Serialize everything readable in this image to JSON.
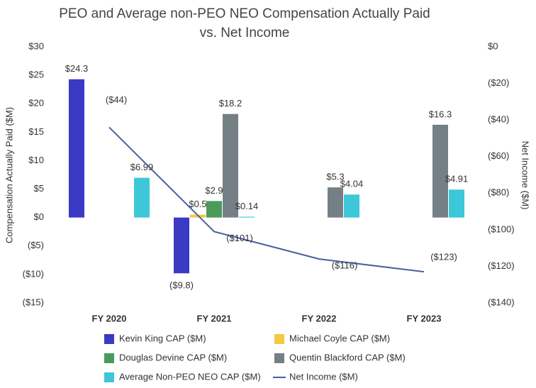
{
  "chart_data": {
    "type": "bar",
    "title": "PEO and Average non-PEO NEO Compensation Actually Paid vs. Net Income",
    "y_label": "Compensation Actually Paid ($M)",
    "y2_label": "Net Income ($M)",
    "categories": [
      "FY 2020",
      "FY 2021",
      "FY 2022",
      "FY 2023"
    ],
    "ylim": [
      -15,
      30
    ],
    "yticks": [
      {
        "value": -15,
        "label": "($15)"
      },
      {
        "value": -10,
        "label": "($10)"
      },
      {
        "value": -5,
        "label": "($5)"
      },
      {
        "value": 0,
        "label": "$0"
      },
      {
        "value": 5,
        "label": "$5"
      },
      {
        "value": 10,
        "label": "$10"
      },
      {
        "value": 15,
        "label": "$15"
      },
      {
        "value": 20,
        "label": "$20"
      },
      {
        "value": 25,
        "label": "$25"
      },
      {
        "value": 30,
        "label": "$30"
      }
    ],
    "y2lim": [
      -140,
      0
    ],
    "y2ticks": [
      {
        "value": -140,
        "label": "($140)"
      },
      {
        "value": -120,
        "label": "($120)"
      },
      {
        "value": -100,
        "label": "($100)"
      },
      {
        "value": -80,
        "label": "($80)"
      },
      {
        "value": -60,
        "label": "($60)"
      },
      {
        "value": -40,
        "label": "($40)"
      },
      {
        "value": -20,
        "label": "($20)"
      },
      {
        "value": 0,
        "label": "$0"
      }
    ],
    "grid": false,
    "series": [
      {
        "name": "Kevin King CAP ($M)",
        "color": "#3a3ac4",
        "values": [
          24.3,
          -9.8,
          null,
          null
        ],
        "value_labels": [
          "$24.3",
          "($9.8)",
          null,
          null
        ]
      },
      {
        "name": "Michael Coyle CAP ($M)",
        "color": "#f5c842",
        "values": [
          null,
          0.5,
          null,
          null
        ],
        "value_labels": [
          null,
          "$0.5",
          null,
          null
        ]
      },
      {
        "name": "Douglas Devine CAP ($M)",
        "color": "#4a9a5a",
        "values": [
          null,
          2.9,
          null,
          null
        ],
        "value_labels": [
          null,
          "$2.9",
          null,
          null
        ]
      },
      {
        "name": "Quentin Blackford CAP ($M)",
        "color": "#757f86",
        "values": [
          null,
          18.2,
          5.3,
          16.3
        ],
        "value_labels": [
          null,
          "$18.2",
          "$5.3",
          "$16.3"
        ]
      },
      {
        "name": "Average Non-PEO NEO CAP ($M)",
        "color": "#3cc8d8",
        "values": [
          6.99,
          0.14,
          4.04,
          4.91
        ],
        "value_labels": [
          "$6.99",
          "$0.14",
          "$4.04",
          "$4.91"
        ]
      },
      {
        "name": "Net Income ($M)",
        "type": "line",
        "axis": "y2",
        "color": "#4a5fa0",
        "values": [
          -44,
          -101,
          -116,
          -123
        ],
        "value_labels": [
          "($44)",
          "($101)",
          "($116)",
          "($123)"
        ]
      }
    ]
  }
}
